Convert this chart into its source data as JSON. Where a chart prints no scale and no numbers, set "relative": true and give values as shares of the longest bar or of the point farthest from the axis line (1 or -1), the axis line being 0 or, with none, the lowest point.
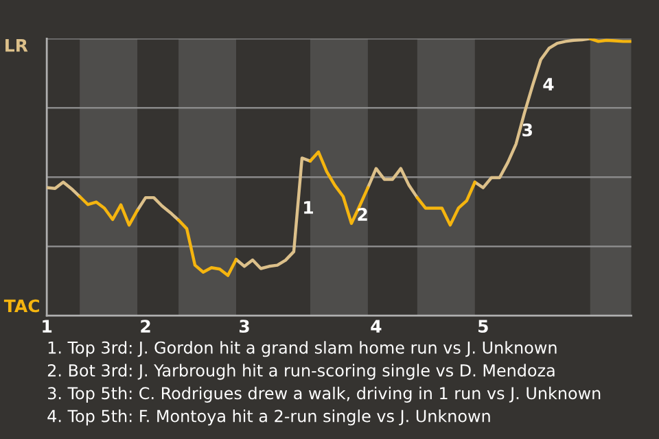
{
  "chart_data": {
    "type": "line",
    "relative": true,
    "categories": [
      "1",
      null,
      null,
      null,
      null,
      null,
      null,
      null,
      null,
      null,
      null,
      null,
      "2",
      null,
      null,
      null,
      null,
      null,
      null,
      null,
      null,
      null,
      null,
      null,
      "3",
      null,
      null,
      null,
      null,
      null,
      null,
      null,
      null,
      null,
      null,
      null,
      null,
      null,
      null,
      null,
      "4",
      null,
      null,
      null,
      null,
      null,
      null,
      null,
      null,
      null,
      null,
      null,
      null,
      "5",
      null,
      null,
      null,
      null,
      null,
      null,
      null,
      null,
      null,
      null,
      null,
      null,
      null,
      null,
      null,
      null,
      null,
      null
    ],
    "marker": "none",
    "line_style": "solid",
    "series": [
      {
        "color": "#dcc08a",
        "values": [
          0.462,
          0.459,
          0.482,
          0.458,
          0.43,
          null,
          null,
          null,
          null,
          null,
          null,
          0.38,
          0.426,
          0.426,
          0.396,
          0.372,
          0.345,
          null,
          null,
          null,
          null,
          null,
          null,
          0.203,
          0.178,
          0.201,
          0.17,
          0.178,
          0.182,
          0.2,
          0.231,
          0.569,
          0.558,
          null,
          null,
          null,
          null,
          null,
          null,
          0.462,
          0.531,
          0.492,
          0.492,
          0.531,
          0.47,
          0.426,
          null,
          null,
          null,
          null,
          null,
          null,
          0.482,
          0.462,
          0.498,
          0.498,
          0.553,
          0.62,
          0.73,
          0.83,
          0.924,
          0.965,
          0.983,
          0.99,
          0.994,
          0.996,
          1.0,
          null,
          null,
          null,
          null,
          null
        ],
        "name": null
      },
      {
        "color": "#f5b50f",
        "values": [
          null,
          null,
          null,
          null,
          0.43,
          0.401,
          0.41,
          0.388,
          0.347,
          0.4,
          0.327,
          0.38,
          null,
          null,
          null,
          null,
          0.345,
          0.314,
          0.182,
          0.157,
          0.173,
          0.168,
          0.145,
          0.203,
          null,
          null,
          null,
          null,
          null,
          null,
          null,
          null,
          0.558,
          0.591,
          0.52,
          0.47,
          0.43,
          0.333,
          0.396,
          0.462,
          null,
          null,
          null,
          null,
          null,
          0.426,
          0.388,
          0.388,
          0.388,
          0.327,
          0.388,
          0.415,
          0.482,
          null,
          null,
          null,
          null,
          null,
          null,
          null,
          null,
          null,
          null,
          null,
          null,
          null,
          1.0,
          0.99,
          0.994,
          0.992,
          0.99,
          0.99
        ],
        "name": null
      }
    ],
    "ref_lines": [
      {
        "axis": "y",
        "value": 0.25,
        "color": "#8a8a8a"
      },
      {
        "axis": "y",
        "value": 0.5,
        "color": "#8a8a8a"
      },
      {
        "axis": "y",
        "value": 0.75,
        "color": "#8a8a8a"
      },
      {
        "axis": "y",
        "value": 1.0,
        "color": "#8a8a8a"
      }
    ],
    "annotations": [
      "LR",
      "TAC",
      "1",
      "2",
      "3",
      "4",
      "1. Top 3rd: J. Gordon hit a grand slam home run vs J. Unknown",
      "2. Bot 3rd: J. Yarbrough hit a run-scoring single vs D. Mendoza",
      "3. Top 5th: C. Rodrigues drew a walk, driving in 1 run vs J. Unknown",
      "4. Top 5th: F. Montoya hit a 2-run single vs J. Unknown"
    ]
  }
}
